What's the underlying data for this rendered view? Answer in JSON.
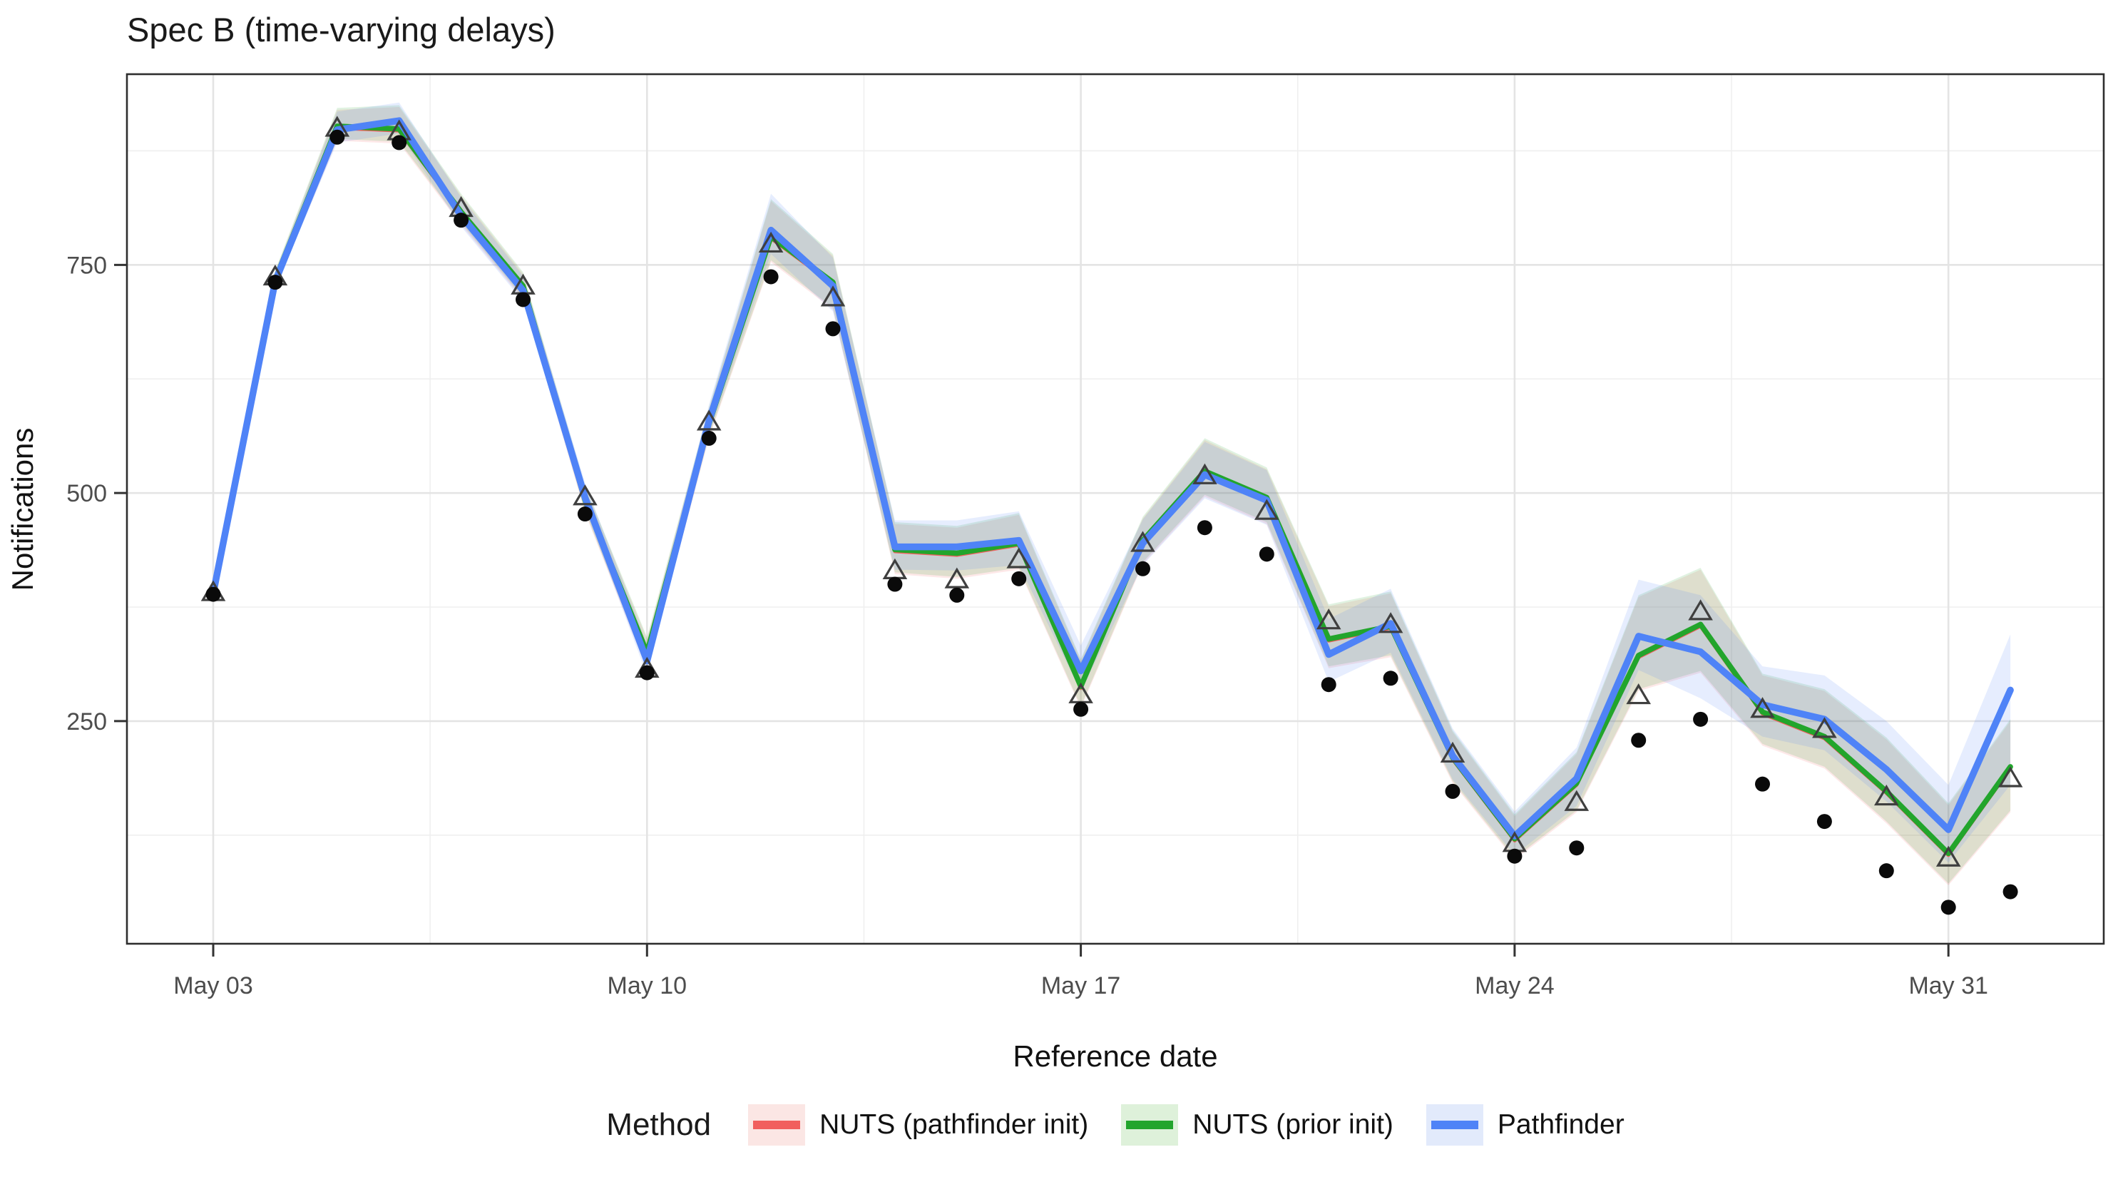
{
  "title": "Spec B (time-varying delays)",
  "axes": {
    "x": {
      "title": "Reference date",
      "tick_labels": [
        "May 03",
        "May 10",
        "May 17",
        "May 24",
        "May 31"
      ],
      "tick_day_indices": [
        0,
        7,
        14,
        21,
        28
      ],
      "minor_day_indices": [
        3.5,
        10.5,
        17.5,
        24.5
      ]
    },
    "y": {
      "title": "Notifications",
      "tick_labels": [
        "250",
        "500",
        "750"
      ],
      "tick_values": [
        250,
        500,
        750
      ],
      "minor_values": [
        125,
        375,
        625,
        875
      ],
      "range": [
        6,
        959
      ]
    }
  },
  "legend": {
    "title": "Method",
    "items": [
      {
        "label": "NUTS (pathfinder init)",
        "line_color": "#F15F5E",
        "ribbon_color": "#FBE6E4"
      },
      {
        "label": "NUTS (prior init)",
        "line_color": "#22A52C",
        "ribbon_color": "#DEF1DA"
      },
      {
        "label": "Pathfinder",
        "line_color": "#4F83F7",
        "ribbon_color": "#E2EAFB"
      }
    ]
  },
  "colors": {
    "grid_major": "#E4E4E4",
    "grid_minor": "#EFEFEF",
    "panel_border": "#2E2E2E",
    "tick": "#333333",
    "tick_label": "#4D4D4D",
    "dot": "#0A0A0A",
    "triangle": "#3F3F3F",
    "title": "#1A1A1A"
  },
  "chart_data": {
    "type": "line",
    "title": "Spec B (time-varying delays)",
    "xlabel": "Reference date",
    "ylabel": "Notifications",
    "ylim": [
      6,
      959
    ],
    "grid": true,
    "legend_position": "bottom",
    "x": [
      "May 03",
      "May 04",
      "May 05",
      "May 06",
      "May 07",
      "May 08",
      "May 09",
      "May 10",
      "May 11",
      "May 12",
      "May 13",
      "May 14",
      "May 15",
      "May 16",
      "May 17",
      "May 18",
      "May 19",
      "May 20",
      "May 21",
      "May 22",
      "May 23",
      "May 24",
      "May 25",
      "May 26",
      "May 27",
      "May 28",
      "May 29",
      "May 30",
      "May 31",
      "Jun 01"
    ],
    "observed_dots": [
      389,
      731,
      890,
      884,
      799,
      712,
      477,
      303,
      560,
      737,
      680,
      400,
      388,
      406,
      263,
      417,
      462,
      433,
      290,
      297,
      173,
      102,
      111,
      229,
      252,
      181,
      140,
      86,
      46,
      63
    ],
    "observed_triangles": [
      391,
      737,
      900,
      896,
      812,
      727,
      496,
      307,
      578,
      773,
      714,
      415,
      405,
      427,
      279,
      445,
      519,
      480,
      360,
      356,
      214,
      116,
      161,
      278,
      370,
      263,
      241,
      167,
      100,
      187
    ],
    "series": [
      {
        "name": "NUTS (pathfinder init)",
        "color": "#F15F5E",
        "values": [
          389,
          732,
          900,
          897,
          806,
          725,
          490,
          323,
          574,
          779,
          729,
          436,
          432,
          443,
          286,
          446,
          522,
          493,
          338,
          352,
          208,
          119,
          180,
          320,
          354,
          258,
          231,
          171,
          103,
          198
        ],
        "lower": [
          383,
          724,
          886,
          883,
          794,
          712,
          478,
          306,
          560,
          753,
          701,
          411,
          406,
          416,
          264,
          422,
          496,
          466,
          308,
          320,
          182,
          98,
          150,
          283,
          303,
          223,
          198,
          138,
          70,
          150
        ],
        "upper": [
          395,
          742,
          920,
          923,
          826,
          740,
          506,
          340,
          592,
          820,
          760,
          466,
          462,
          476,
          316,
          472,
          558,
          526,
          376,
          390,
          238,
          146,
          214,
          386,
          416,
          300,
          283,
          230,
          158,
          250
        ]
      },
      {
        "name": "NUTS (prior init)",
        "color": "#22A52C",
        "values": [
          390,
          734,
          902,
          899,
          808,
          727,
          492,
          325,
          576,
          781,
          731,
          438,
          434,
          445,
          288,
          448,
          524,
          495,
          340,
          354,
          210,
          121,
          182,
          322,
          356,
          260,
          233,
          173,
          105,
          200
        ],
        "lower": [
          384,
          726,
          888,
          885,
          796,
          714,
          480,
          308,
          562,
          755,
          703,
          413,
          408,
          418,
          266,
          424,
          498,
          468,
          310,
          322,
          184,
          100,
          152,
          285,
          305,
          225,
          200,
          140,
          72,
          152
        ],
        "upper": [
          396,
          744,
          922,
          925,
          828,
          742,
          508,
          342,
          594,
          822,
          762,
          468,
          464,
          478,
          318,
          474,
          560,
          528,
          378,
          392,
          240,
          148,
          216,
          388,
          418,
          302,
          285,
          232,
          160,
          252
        ]
      },
      {
        "name": "Pathfinder",
        "color": "#4F83F7",
        "values": [
          390,
          732,
          898,
          908,
          804,
          722,
          495,
          316,
          579,
          788,
          727,
          441,
          441,
          448,
          305,
          445,
          520,
          492,
          323,
          357,
          212,
          124,
          187,
          343,
          326,
          268,
          252,
          197,
          131,
          284
        ],
        "lower": [
          384,
          724,
          884,
          894,
          792,
          710,
          483,
          300,
          565,
          762,
          699,
          416,
          415,
          421,
          283,
          421,
          494,
          465,
          293,
          325,
          186,
          103,
          157,
          306,
          275,
          233,
          218,
          162,
          95,
          180
        ],
        "upper": [
          396,
          742,
          918,
          928,
          824,
          738,
          511,
          334,
          597,
          828,
          758,
          470,
          470,
          480,
          333,
          471,
          556,
          525,
          362,
          395,
          242,
          151,
          221,
          405,
          388,
          310,
          300,
          250,
          180,
          345
        ]
      }
    ]
  }
}
